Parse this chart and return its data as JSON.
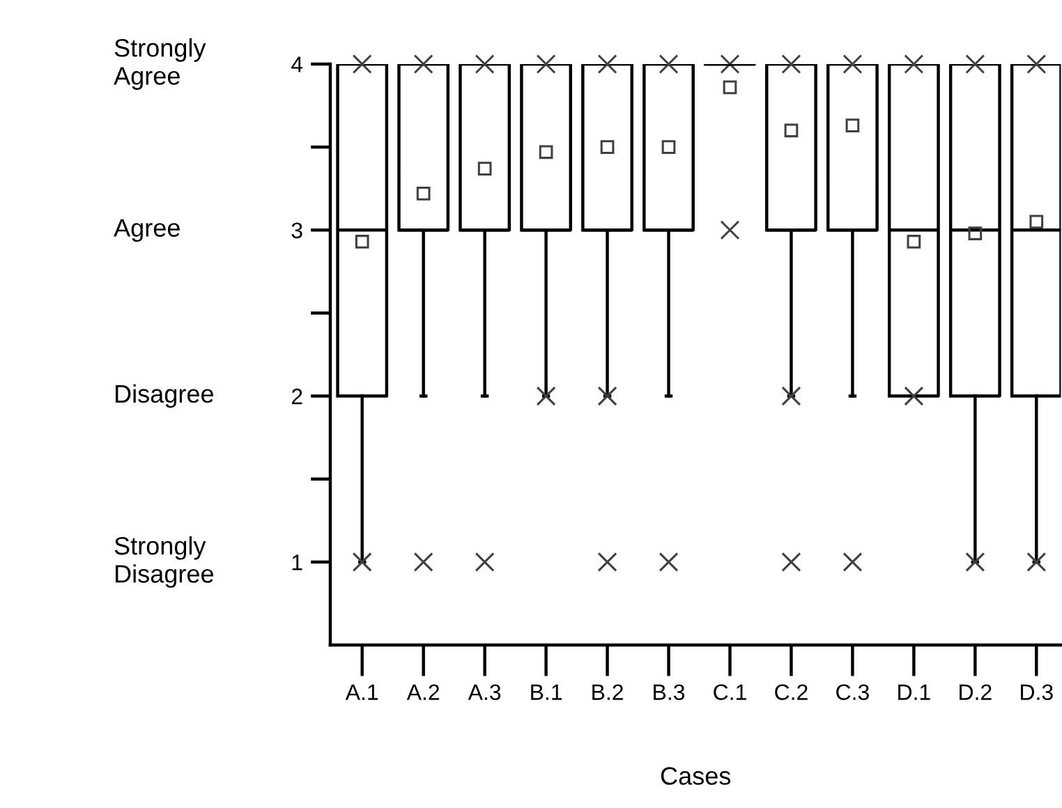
{
  "chart_data": {
    "type": "box",
    "xlabel": "Cases",
    "categories": [
      "A.1",
      "A.2",
      "A.3",
      "B.1",
      "B.2",
      "B.3",
      "C.1",
      "C.2",
      "C.3",
      "D.1",
      "D.2",
      "D.3"
    ],
    "boxes": [
      {
        "low": 1,
        "q1": 2,
        "median": 3,
        "q3": 4,
        "high": 4,
        "mean": 2.93,
        "outliers": [
          1,
          4
        ]
      },
      {
        "low": 2,
        "q1": 3,
        "median": 3,
        "q3": 4,
        "high": 4,
        "mean": 3.22,
        "outliers": [
          1,
          4
        ]
      },
      {
        "low": 2,
        "q1": 3,
        "median": 3,
        "q3": 4,
        "high": 4,
        "mean": 3.37,
        "outliers": [
          1,
          4
        ]
      },
      {
        "low": 2,
        "q1": 3,
        "median": 3,
        "q3": 4,
        "high": 4,
        "mean": 3.47,
        "outliers": [
          2,
          4
        ]
      },
      {
        "low": 2,
        "q1": 3,
        "median": 3,
        "q3": 4,
        "high": 4,
        "mean": 3.5,
        "outliers": [
          1,
          2,
          4
        ]
      },
      {
        "low": 2,
        "q1": 3,
        "median": 3,
        "q3": 4,
        "high": 4,
        "mean": 3.5,
        "outliers": [
          1,
          4
        ]
      },
      {
        "low": 4,
        "q1": 4,
        "median": 4,
        "q3": 4,
        "high": 4,
        "mean": 3.86,
        "outliers": [
          3,
          4
        ]
      },
      {
        "low": 2,
        "q1": 3,
        "median": 3,
        "q3": 4,
        "high": 4,
        "mean": 3.6,
        "outliers": [
          1,
          2,
          4
        ]
      },
      {
        "low": 2,
        "q1": 3,
        "median": 3,
        "q3": 4,
        "high": 4,
        "mean": 3.63,
        "outliers": [
          1,
          4
        ]
      },
      {
        "low": 2,
        "q1": 2,
        "median": 3,
        "q3": 4,
        "high": 4,
        "mean": 2.93,
        "outliers": [
          2,
          4
        ]
      },
      {
        "low": 1,
        "q1": 2,
        "median": 3,
        "q3": 4,
        "high": 4,
        "mean": 2.98,
        "outliers": [
          1,
          4
        ]
      },
      {
        "low": 1,
        "q1": 2,
        "median": 3,
        "q3": 4,
        "high": 4,
        "mean": 3.05,
        "outliers": [
          1,
          4
        ]
      }
    ],
    "ylim": [
      0.5,
      4
    ],
    "yticks": [
      1,
      {
        "value": 1.5,
        "label": null
      },
      2,
      {
        "value": 2.5,
        "label": null
      },
      3,
      {
        "value": 3.5,
        "label": null
      },
      4
    ],
    "annotations": [
      "Strongly\nAgree",
      "Agree",
      "Disagree",
      "Strongly\nDisagree"
    ],
    "grid": false,
    "legend": false
  }
}
